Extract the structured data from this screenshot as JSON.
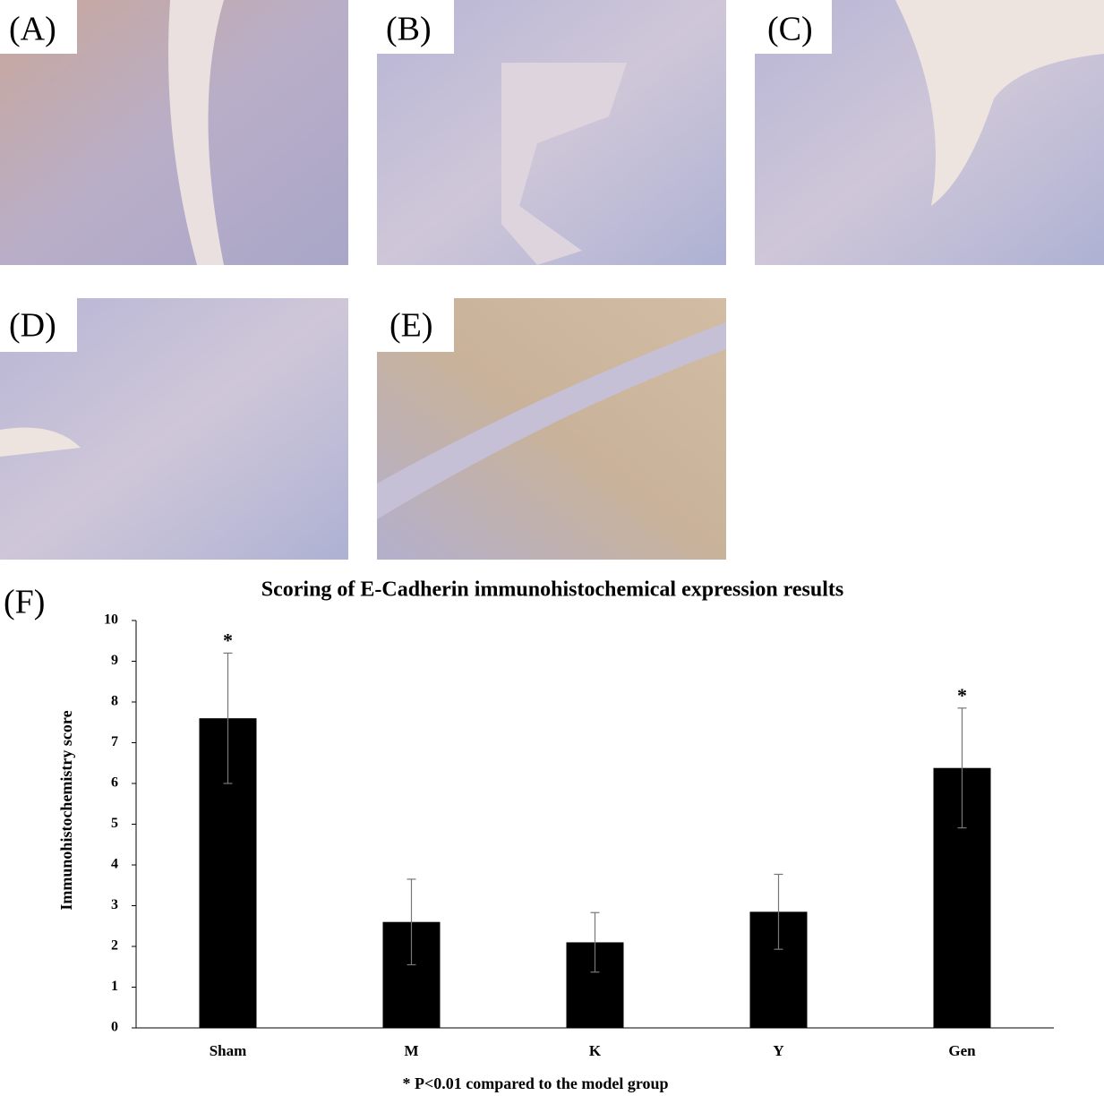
{
  "panel_labels": [
    "(A)",
    "(B)",
    "(C)",
    "(D)",
    "(E)",
    "(F)"
  ],
  "chart_data": {
    "type": "bar",
    "title": "Scoring of E-Cadherin immunohistochemical expression results",
    "y_label": "Immunohistochemistry score",
    "footnote": "* P<0.01 compared to the model group",
    "categories": [
      "Sham",
      "M",
      "K",
      "Y",
      "Gen"
    ],
    "values": [
      7.6,
      2.6,
      2.1,
      2.85,
      6.38
    ],
    "errors": [
      1.6,
      1.05,
      0.73,
      0.92,
      1.47
    ],
    "annotations": [
      "*",
      null,
      null,
      null,
      "*"
    ],
    "color": "#000000",
    "ylim": [
      0,
      10
    ],
    "yticks": [
      0,
      1,
      2,
      3,
      4,
      5,
      6,
      7,
      8,
      9,
      10
    ]
  }
}
